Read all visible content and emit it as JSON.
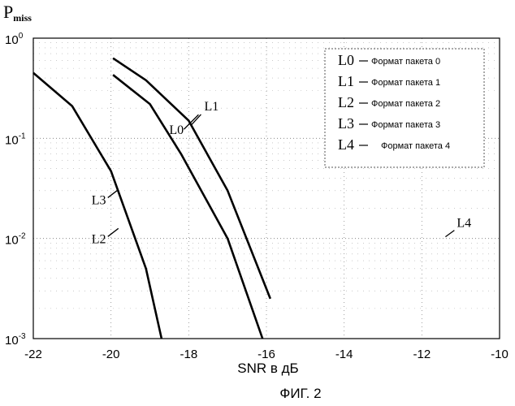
{
  "chart_data": {
    "type": "line",
    "ylabel_main": "P",
    "ylabel_sub": "miss",
    "xlabel": "SNR в дБ",
    "caption": "ФИГ. 2",
    "xlim": [
      -22,
      -10
    ],
    "ylim": [
      0.001,
      1
    ],
    "yscale": "log",
    "x_ticks": [
      "-22",
      "-20",
      "-18",
      "-16",
      "-14",
      "-12",
      "-10"
    ],
    "y_ticks": [
      {
        "base": "10",
        "exp": "0"
      },
      {
        "base": "10",
        "exp": "-1"
      },
      {
        "base": "10",
        "exp": "-2"
      },
      {
        "base": "10",
        "exp": "-3"
      }
    ],
    "grid": true,
    "legend_position": "top-right",
    "legend": [
      {
        "code": "L0",
        "text": "Формат пакета 0"
      },
      {
        "code": "L1",
        "text": "Формат пакета 1"
      },
      {
        "code": "L2",
        "text": "Формат пакета 2"
      },
      {
        "code": "L3",
        "text": "Формат пакета 3"
      },
      {
        "code": "L4",
        "text": "Формат пакета 4"
      }
    ],
    "series": [
      {
        "name": "L0",
        "x": [
          -19.95,
          -19,
          -18.2,
          -17,
          -16.1
        ],
        "y": [
          0.43,
          0.22,
          0.07,
          0.01,
          0.001
        ]
      },
      {
        "name": "L1",
        "x": [
          -19.95,
          -19.1,
          -18,
          -17,
          -15.9
        ],
        "y": [
          0.63,
          0.38,
          0.15,
          0.03,
          0.0025
        ]
      },
      {
        "name": "L2 / L3",
        "x": [
          -22,
          -21,
          -20,
          -19.1,
          -18.7
        ],
        "y": [
          0.45,
          0.21,
          0.047,
          0.005,
          0.001
        ]
      }
    ],
    "annotations": [
      {
        "text": "L0",
        "x": -18.5,
        "y": 0.11
      },
      {
        "text": "L1",
        "x": -17.6,
        "y": 0.19
      },
      {
        "text": "L3",
        "x": -20.5,
        "y": 0.022
      },
      {
        "text": "L2",
        "x": -20.5,
        "y": 0.009
      },
      {
        "text": "L4",
        "x": -11.1,
        "y": 0.013
      }
    ]
  }
}
